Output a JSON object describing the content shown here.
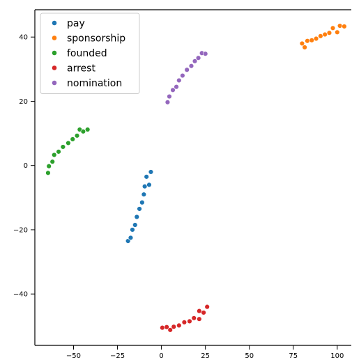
{
  "chart_data": {
    "type": "scatter",
    "title": "",
    "xlabel": "",
    "ylabel": "",
    "xlim": [
      -72,
      108
    ],
    "ylim": [
      -56,
      48.5
    ],
    "xticks": [
      -50,
      -25,
      0,
      25,
      50,
      75,
      100
    ],
    "yticks": [
      -40,
      -20,
      0,
      20,
      40
    ],
    "grid": false,
    "legend": {
      "position": "top-left"
    },
    "series": [
      {
        "name": "pay",
        "color": "#1f77b4",
        "points": [
          [
            -19,
            -23.5
          ],
          [
            -17.5,
            -22.5
          ],
          [
            -16.5,
            -20
          ],
          [
            -15,
            -18.5
          ],
          [
            -14,
            -16
          ],
          [
            -12.5,
            -13.5
          ],
          [
            -11,
            -11.5
          ],
          [
            -10,
            -9
          ],
          [
            -9.5,
            -6.5
          ],
          [
            -8.5,
            -3.5
          ],
          [
            -7,
            -6
          ],
          [
            -6,
            -2
          ]
        ]
      },
      {
        "name": "sponsorship",
        "color": "#ff7f0e",
        "points": [
          [
            80,
            38
          ],
          [
            81.5,
            36.8
          ],
          [
            83,
            38.8
          ],
          [
            85.5,
            39
          ],
          [
            88,
            39.5
          ],
          [
            90.5,
            40.3
          ],
          [
            93,
            40.8
          ],
          [
            95.5,
            41.3
          ],
          [
            97.5,
            42.8
          ],
          [
            100,
            41.5
          ],
          [
            101.5,
            43.5
          ],
          [
            104,
            43.3
          ]
        ]
      },
      {
        "name": "founded",
        "color": "#2ca02c",
        "points": [
          [
            -64.5,
            -2.3
          ],
          [
            -64,
            -0.2
          ],
          [
            -62,
            1.2
          ],
          [
            -61,
            3.3
          ],
          [
            -58.5,
            4.3
          ],
          [
            -56,
            5.8
          ],
          [
            -53,
            7
          ],
          [
            -50.5,
            8.2
          ],
          [
            -48,
            9.3
          ],
          [
            -46.5,
            11.2
          ],
          [
            -44.5,
            10.6
          ],
          [
            -42,
            11.2
          ]
        ]
      },
      {
        "name": "arrest",
        "color": "#d62728",
        "points": [
          [
            0.5,
            -50.5
          ],
          [
            3,
            -50.3
          ],
          [
            5,
            -51.2
          ],
          [
            7,
            -50.2
          ],
          [
            10,
            -49.8
          ],
          [
            13,
            -48.8
          ],
          [
            16,
            -48.5
          ],
          [
            18.5,
            -47.5
          ],
          [
            21.5,
            -47.8
          ],
          [
            21.5,
            -45.3
          ],
          [
            24,
            -45.8
          ],
          [
            26,
            -44
          ]
        ]
      },
      {
        "name": "nomination",
        "color": "#9467bd",
        "points": [
          [
            3.5,
            19.7
          ],
          [
            4.5,
            21.5
          ],
          [
            6.5,
            23.5
          ],
          [
            8.5,
            24.5
          ],
          [
            10,
            26.5
          ],
          [
            12,
            28
          ],
          [
            14.5,
            29.8
          ],
          [
            17,
            31
          ],
          [
            19,
            32.5
          ],
          [
            21,
            33.5
          ],
          [
            23,
            35
          ],
          [
            25,
            34.8
          ]
        ]
      }
    ]
  }
}
